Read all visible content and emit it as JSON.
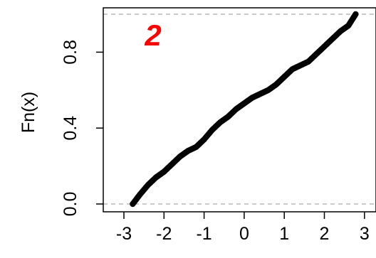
{
  "chart_data": {
    "type": "line",
    "title": "",
    "xlabel": "",
    "ylabel": "Fn(x)",
    "annotation": "2",
    "xlim": [
      -3,
      3
    ],
    "ylim": [
      0,
      1
    ],
    "x_ticks": [
      -3,
      -2,
      -1,
      0,
      1,
      2,
      3
    ],
    "x_tick_labels": [
      "-3",
      "-2",
      "-1",
      "0",
      "1",
      "2",
      "3"
    ],
    "y_ticks": [
      0.0,
      0.4,
      0.8
    ],
    "y_tick_labels": [
      "0.0",
      "0.4",
      "0.8"
    ],
    "reference_lines_y": [
      0,
      1
    ],
    "grid": false,
    "colors": {
      "series": "#000000",
      "annotation": "#ff0000",
      "reference": "#aaaaaa"
    },
    "series": [
      {
        "x": [
          -2.78,
          -2.6,
          -2.4,
          -2.2,
          -2.0,
          -1.8,
          -1.6,
          -1.4,
          -1.2,
          -1.0,
          -0.8,
          -0.6,
          -0.4,
          -0.2,
          0.0,
          0.2,
          0.4,
          0.6,
          0.8,
          1.0,
          1.2,
          1.4,
          1.6,
          1.8,
          2.0,
          2.2,
          2.4,
          2.6,
          2.78
        ],
        "y": [
          0.0,
          0.05,
          0.1,
          0.14,
          0.17,
          0.21,
          0.25,
          0.28,
          0.3,
          0.34,
          0.39,
          0.43,
          0.46,
          0.5,
          0.53,
          0.56,
          0.58,
          0.6,
          0.63,
          0.67,
          0.71,
          0.73,
          0.75,
          0.79,
          0.83,
          0.87,
          0.91,
          0.94,
          1.0
        ]
      }
    ]
  }
}
